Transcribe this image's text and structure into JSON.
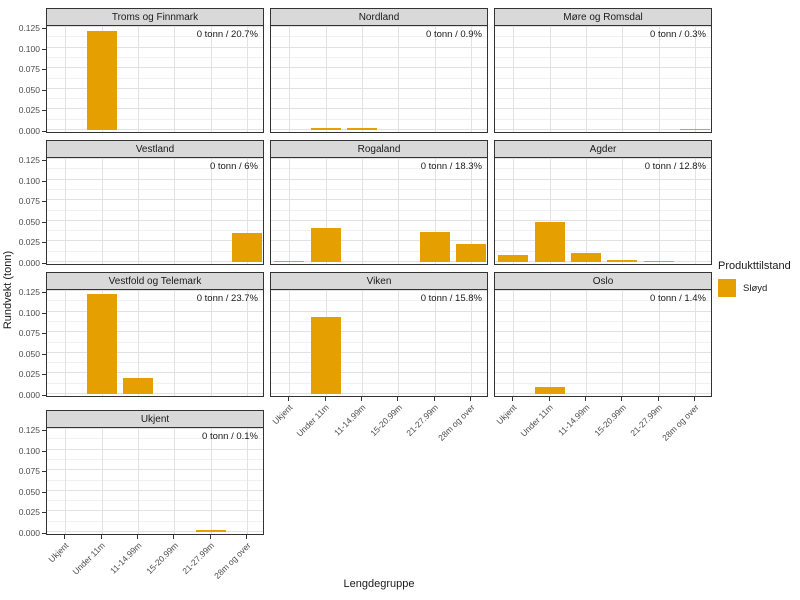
{
  "chart_data": {
    "type": "bar",
    "title": "",
    "xlabel": "Lengdegruppe",
    "ylabel": "Rundvekt (tonn)",
    "categories": [
      "Ukjent",
      "Under 11m",
      "11-14.99m",
      "15-20.99m",
      "21-27.99m",
      "28m og over"
    ],
    "y_ticks": [
      "0.000",
      "0.025",
      "0.050",
      "0.075",
      "0.100",
      "0.125"
    ],
    "y_tick_values": [
      0,
      0.025,
      0.05,
      0.075,
      0.1,
      0.125
    ],
    "y_minor_values": [
      0.0125,
      0.0375,
      0.0625,
      0.0875,
      0.1125
    ],
    "ylim": [
      0,
      0.127
    ],
    "grid": true,
    "bar_color": "#E69F00",
    "legend": {
      "title": "Produkttilstand",
      "position": "right",
      "entries": [
        {
          "label": "Sløyd",
          "color": "#E69F00"
        }
      ]
    },
    "facets": [
      {
        "name": "Troms og Finnmark",
        "annotation": "0 tonn / 20.7%",
        "row": 0,
        "col": 0,
        "show_x_axis": false,
        "values": [
          0,
          0.12,
          0,
          0,
          0,
          0
        ]
      },
      {
        "name": "Nordland",
        "annotation": "0 tonn / 0.9%",
        "row": 0,
        "col": 1,
        "show_x_axis": false,
        "values": [
          0,
          0.002,
          0.002,
          0,
          0,
          0
        ]
      },
      {
        "name": "Møre og Romsdal",
        "annotation": "0 tonn / 0.3%",
        "row": 0,
        "col": 2,
        "show_x_axis": false,
        "values": [
          0,
          0,
          0,
          0,
          0,
          0.001
        ]
      },
      {
        "name": "Vestland",
        "annotation": "0 tonn / 6%",
        "row": 1,
        "col": 0,
        "show_x_axis": false,
        "values": [
          0,
          0,
          0,
          0,
          0,
          0.035
        ]
      },
      {
        "name": "Rogaland",
        "annotation": "0 tonn / 18.3%",
        "row": 1,
        "col": 1,
        "show_x_axis": false,
        "values": [
          0.001,
          0.041,
          0,
          0,
          0.036,
          0.022
        ]
      },
      {
        "name": "Agder",
        "annotation": "0 tonn / 12.8%",
        "row": 1,
        "col": 2,
        "show_x_axis": false,
        "values": [
          0.008,
          0.048,
          0.011,
          0.002,
          0.001,
          0
        ]
      },
      {
        "name": "Vestfold og Telemark",
        "annotation": "0 tonn / 23.7%",
        "row": 2,
        "col": 0,
        "show_x_axis": false,
        "values": [
          0,
          0.121,
          0.02,
          0,
          0,
          0
        ]
      },
      {
        "name": "Viken",
        "annotation": "0 tonn / 15.8%",
        "row": 2,
        "col": 1,
        "show_x_axis": true,
        "values": [
          0,
          0.094,
          0,
          0,
          0,
          0
        ]
      },
      {
        "name": "Oslo",
        "annotation": "0 tonn / 1.4%",
        "row": 2,
        "col": 2,
        "show_x_axis": true,
        "values": [
          0,
          0.008,
          0,
          0,
          0,
          0
        ]
      },
      {
        "name": "Ukjent",
        "annotation": "0 tonn / 0.1%",
        "row": 3,
        "col": 0,
        "show_x_axis": true,
        "values": [
          0,
          0,
          0,
          0,
          0.002,
          0
        ]
      }
    ]
  }
}
